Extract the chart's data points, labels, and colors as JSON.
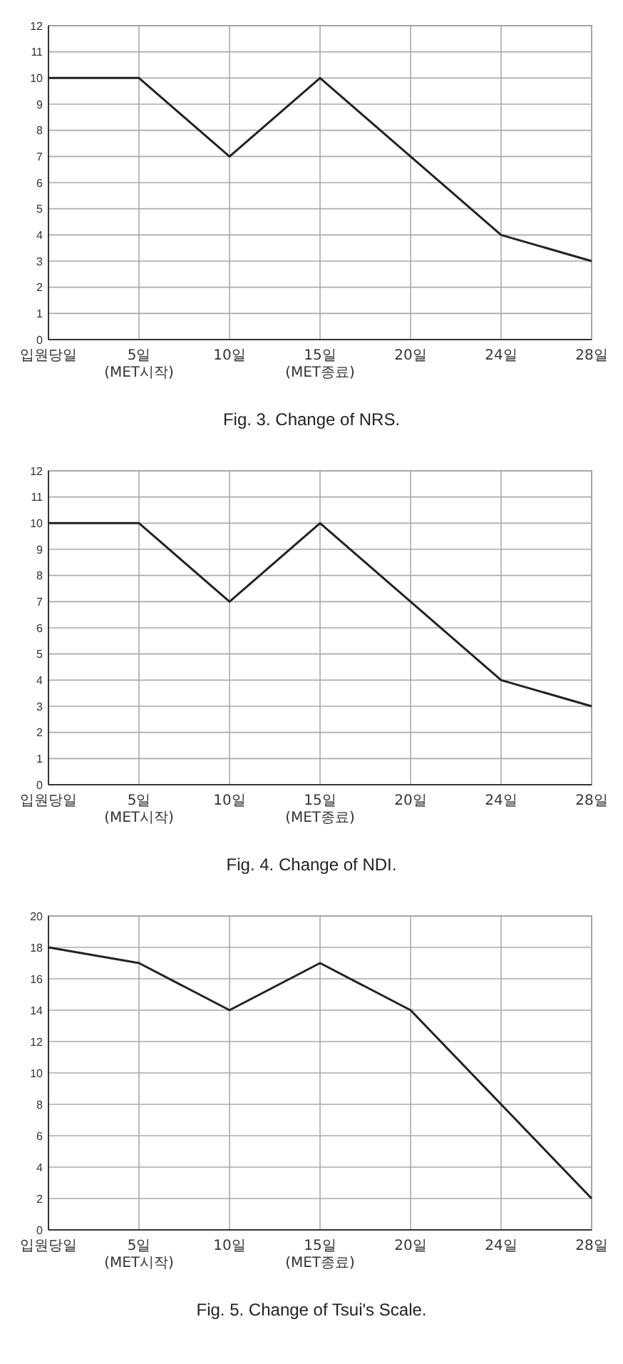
{
  "chart_data": [
    {
      "type": "line",
      "title": "Fig. 3. Change of NRS.",
      "categories": [
        "입원당일",
        "5일(MET시작)",
        "10일",
        "15일(MET종료)",
        "20일",
        "24일",
        "28일"
      ],
      "values": [
        10,
        10,
        7,
        10,
        7,
        4,
        3
      ],
      "color": "#222222",
      "ylim": [
        0,
        12
      ],
      "yticks": [
        0,
        1,
        2,
        3,
        4,
        5,
        6,
        7,
        8,
        9,
        10,
        11,
        12
      ],
      "grid": true
    },
    {
      "type": "line",
      "title": "Fig. 4. Change of NDI.",
      "categories": [
        "입원당일",
        "5일(MET시작)",
        "10일",
        "15일(MET종료)",
        "20일",
        "24일",
        "28일"
      ],
      "values": [
        10,
        10,
        7,
        10,
        7,
        4,
        3
      ],
      "color": "#222222",
      "ylim": [
        0,
        12
      ],
      "yticks": [
        0,
        1,
        2,
        3,
        4,
        5,
        6,
        7,
        8,
        9,
        10,
        11,
        12
      ],
      "grid": true
    },
    {
      "type": "line",
      "title": "Fig. 5. Change of Tsui's Scale.",
      "categories": [
        "입원당일",
        "5일(MET시작)",
        "10일",
        "15일(MET종료)",
        "20일",
        "24일",
        "28일"
      ],
      "values": [
        18,
        17,
        14,
        17,
        14,
        8,
        2
      ],
      "color": "#222222",
      "ylim": [
        0,
        20
      ],
      "yticks": [
        0,
        2,
        4,
        6,
        8,
        10,
        12,
        14,
        16,
        18,
        20
      ],
      "grid": true
    }
  ]
}
